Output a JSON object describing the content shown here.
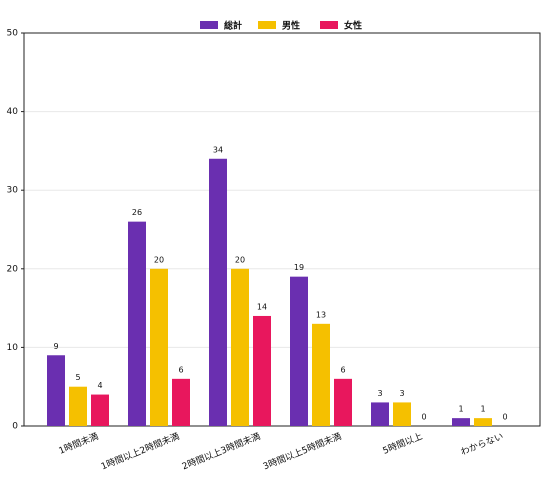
{
  "chart_data": {
    "type": "bar",
    "categories": [
      "1時間未満",
      "1時間以上2時間未満",
      "2時間以上3時間未満",
      "3時間以上5時間未満",
      "5時間以上",
      "わからない"
    ],
    "series": [
      {
        "name": "総計",
        "color": "#6a2fb0",
        "values": [
          9,
          26,
          34,
          19,
          3,
          1
        ]
      },
      {
        "name": "男性",
        "color": "#f5c000",
        "values": [
          5,
          20,
          20,
          13,
          3,
          1
        ]
      },
      {
        "name": "女性",
        "color": "#e8175d",
        "values": [
          4,
          6,
          14,
          6,
          0,
          0
        ]
      }
    ],
    "ylim": [
      0,
      50
    ],
    "yticks": [
      0,
      10,
      20,
      30,
      40,
      50
    ],
    "grid": true,
    "legend": "top"
  }
}
